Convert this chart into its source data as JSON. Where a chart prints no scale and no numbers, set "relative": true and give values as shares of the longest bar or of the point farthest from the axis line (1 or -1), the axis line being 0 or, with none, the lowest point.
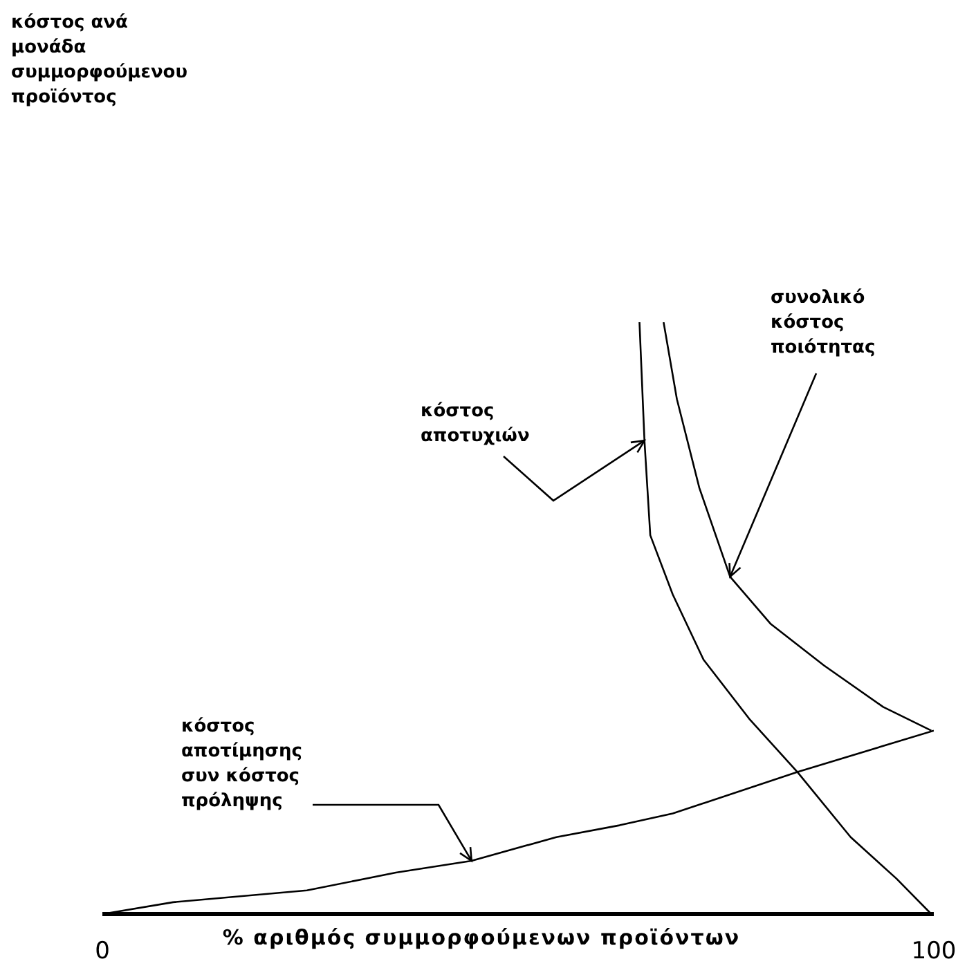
{
  "chart_data": {
    "type": "line",
    "relative": true,
    "xlabel": "% αριθμός συμμορφούμενων προϊόντων",
    "xlim": [
      0,
      100
    ],
    "xticks": [
      0,
      100
    ],
    "annotations": [
      "κόστος ανά μονάδα συμμορφούμενου προϊόντος",
      {
        "text": "κόστος αποτυχιών",
        "x": 65.2,
        "y": 0.8
      },
      {
        "text": "συνολικό κόστος ποιότητας",
        "x": 75.5,
        "y": 0.57
      },
      {
        "text": "κόστος αποτίμησης συν κόστος πρόληψης",
        "x": 44.4,
        "y": 0.09
      }
    ],
    "series": [
      {
        "color": "#000000",
        "x": [
          64.6,
          65.2,
          65.9,
          68.6,
          72.3,
          77.8,
          83.6,
          90.0,
          95.5,
          99.7
        ],
        "values": [
          1.0,
          0.8,
          0.64,
          0.54,
          0.43,
          0.33,
          0.24,
          0.13,
          0.06,
          0
        ]
      },
      {
        "color": "#000000",
        "x": [
          67.5,
          69.1,
          71.8,
          75.5,
          80.4,
          86.8,
          93.9,
          99.7
        ],
        "values": [
          1.0,
          0.87,
          0.72,
          0.57,
          0.49,
          0.42,
          0.35,
          0.31
        ]
      },
      {
        "color": "#000000",
        "x": [
          0,
          8.5,
          24.6,
          35.3,
          44.4,
          54.6,
          62.2,
          68.6,
          83.6,
          100
        ],
        "values": [
          0,
          0.02,
          0.04,
          0.07,
          0.09,
          0.13,
          0.15,
          0.17,
          0.24,
          0.31
        ]
      }
    ]
  }
}
